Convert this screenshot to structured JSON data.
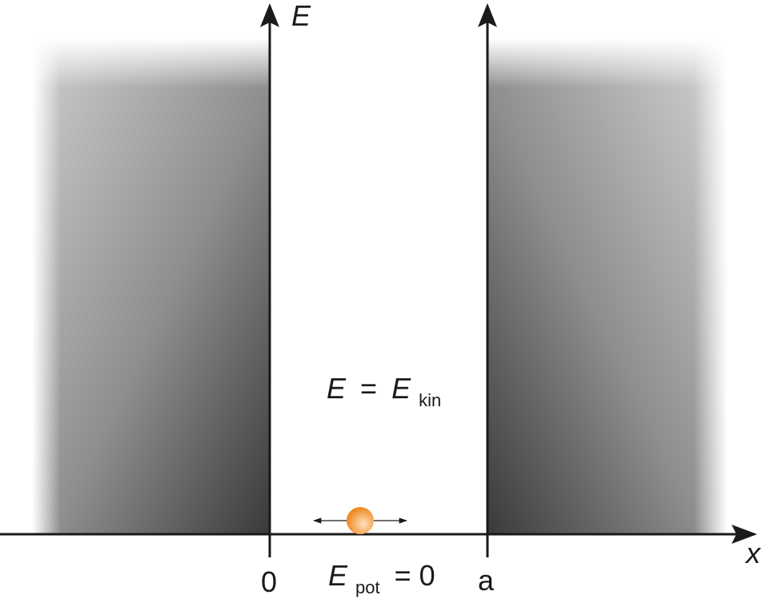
{
  "axes": {
    "y_label": "E",
    "x_label": "x",
    "left_wall_tick": "0",
    "right_wall_tick": "a"
  },
  "annotations": {
    "energy_equation": {
      "lhs": "E",
      "equals": "=",
      "rhs_base": "E",
      "rhs_sub": "kin"
    },
    "potential_equation": {
      "base": "E",
      "sub": "pot",
      "rest": "= 0"
    }
  },
  "colors": {
    "axis": "#1a1a1a",
    "wall_dark": "#3a3a3a",
    "wall_light": "#d4d4d4",
    "particle": "#f59b3c",
    "particle_highlight": "#fde2c0"
  }
}
